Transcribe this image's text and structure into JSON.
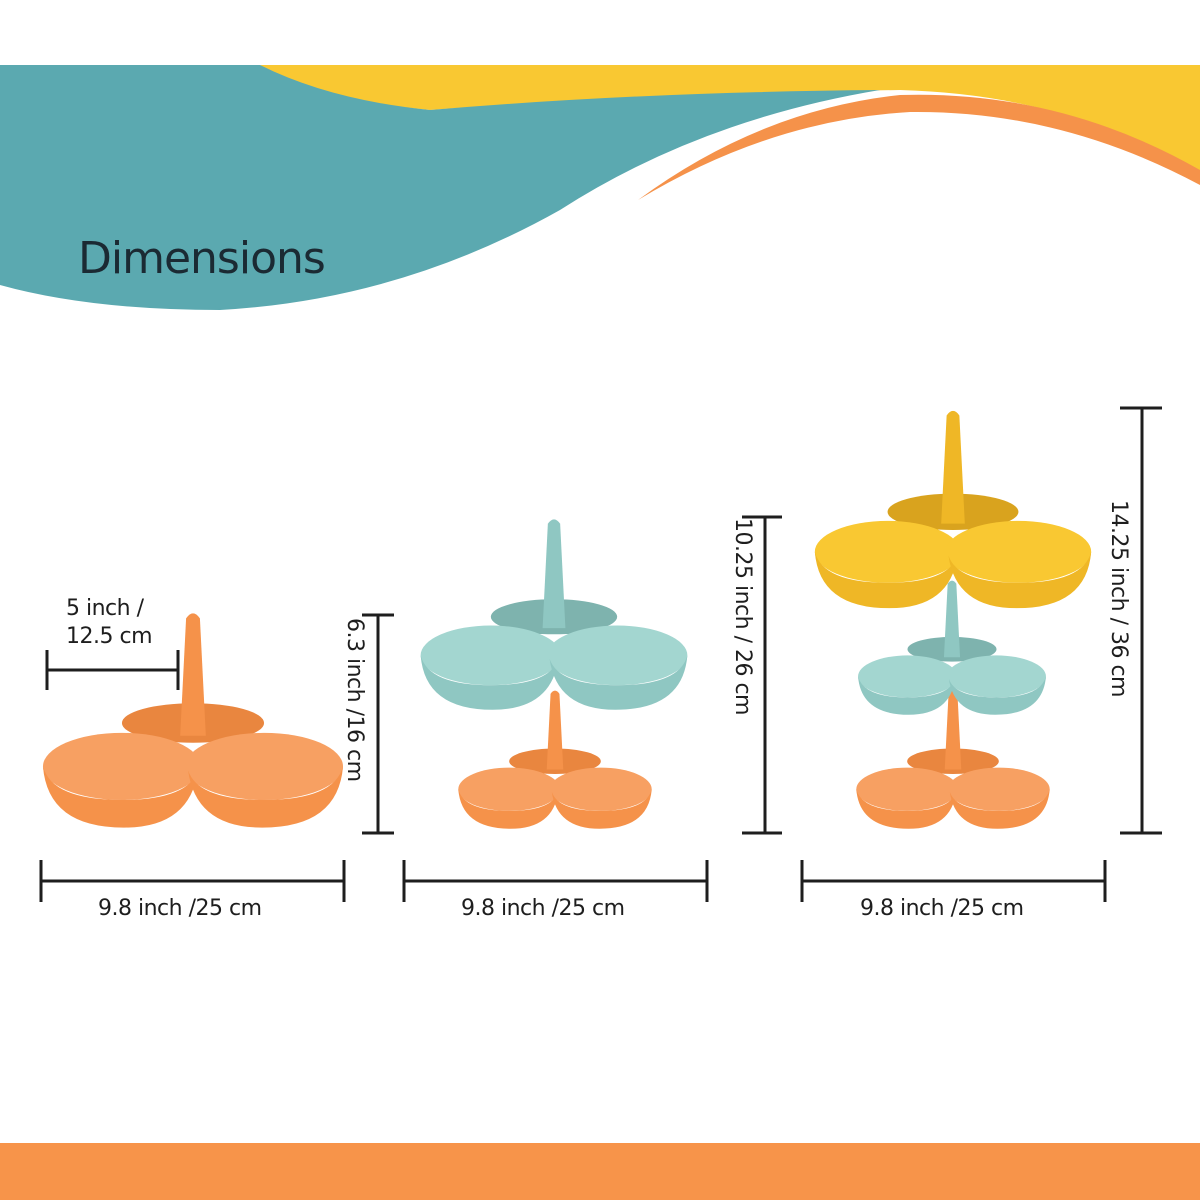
{
  "title": "Dimensions",
  "colors": {
    "teal": "#5ba9b0",
    "yellow": "#f9c832",
    "orange": "#f5924a",
    "light_blue": "#a3d6d0",
    "bottom_bar": "#f7944a"
  },
  "stands": [
    {
      "tiers": [
        "orange"
      ],
      "width_label": "9.8 inch /25  cm",
      "height_label": "6.3 inch /16  cm",
      "bowl_label_line1": "5 inch /",
      "bowl_label_line2": "12.5  cm"
    },
    {
      "tiers": [
        "orange",
        "light_blue"
      ],
      "width_label": "9.8 inch /25  cm",
      "height_label": "10.25 inch  /  26  cm"
    },
    {
      "tiers": [
        "orange",
        "light_blue",
        "yellow"
      ],
      "width_label": "9.8 inch /25  cm",
      "height_label": "14.25 inch  /  36  cm"
    }
  ]
}
